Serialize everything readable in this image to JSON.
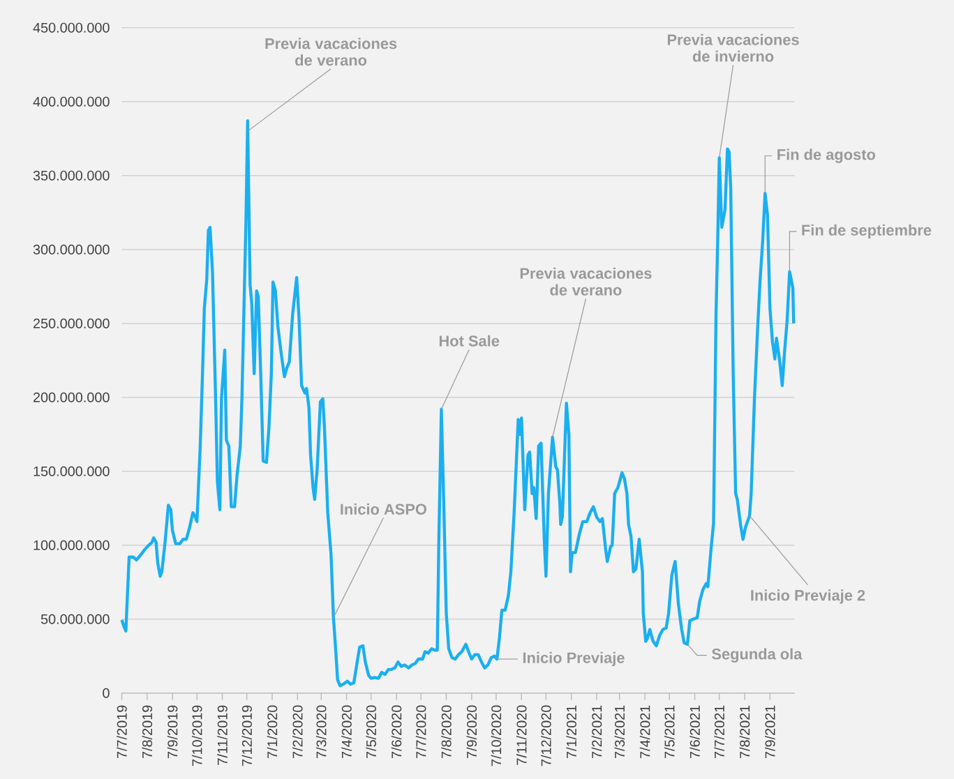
{
  "chart_data": {
    "type": "line",
    "color": "#1aaff0",
    "grid": "y",
    "line_style": "solid",
    "x": [
      "2019-07-07",
      "2019-07-10",
      "2019-07-12",
      "2019-07-16",
      "2019-07-21",
      "2019-07-25",
      "2019-07-31",
      "2019-08-04",
      "2019-08-09",
      "2019-08-13",
      "2019-08-15",
      "2019-08-18",
      "2019-08-20",
      "2019-08-23",
      "2019-08-25",
      "2019-08-29",
      "2019-09-02",
      "2019-09-05",
      "2019-09-07",
      "2019-09-11",
      "2019-09-16",
      "2019-09-20",
      "2019-09-24",
      "2019-09-28",
      "2019-10-02",
      "2019-10-05",
      "2019-10-07",
      "2019-10-11",
      "2019-10-14",
      "2019-10-16",
      "2019-10-19",
      "2019-10-21",
      "2019-10-23",
      "2019-10-26",
      "2019-10-30",
      "2019-11-01",
      "2019-11-04",
      "2019-11-06",
      "2019-11-10",
      "2019-11-12",
      "2019-11-15",
      "2019-11-18",
      "2019-11-22",
      "2019-11-25",
      "2019-11-29",
      "2019-12-01",
      "2019-12-06",
      "2019-12-08",
      "2019-12-11",
      "2019-12-13",
      "2019-12-16",
      "2019-12-19",
      "2019-12-21",
      "2019-12-24",
      "2019-12-27",
      "2019-12-31",
      "2020-01-03",
      "2020-01-06",
      "2020-01-08",
      "2020-01-11",
      "2020-01-14",
      "2020-01-18",
      "2020-01-22",
      "2020-01-25",
      "2020-01-28",
      "2020-02-01",
      "2020-02-06",
      "2020-02-09",
      "2020-02-12",
      "2020-02-16",
      "2020-02-18",
      "2020-02-21",
      "2020-02-23",
      "2020-02-26",
      "2020-02-28",
      "2020-03-02",
      "2020-03-06",
      "2020-03-09",
      "2020-03-11",
      "2020-03-15",
      "2020-03-19",
      "2020-03-22",
      "2020-03-25",
      "2020-03-27",
      "2020-03-30",
      "2020-04-03",
      "2020-04-08",
      "2020-04-12",
      "2020-04-16",
      "2020-04-20",
      "2020-04-23",
      "2020-04-27",
      "2020-04-30",
      "2020-05-04",
      "2020-05-07",
      "2020-05-11",
      "2020-05-16",
      "2020-05-20",
      "2020-05-24",
      "2020-05-28",
      "2020-06-01",
      "2020-06-05",
      "2020-06-09",
      "2020-06-13",
      "2020-06-17",
      "2020-06-22",
      "2020-06-26",
      "2020-06-30",
      "2020-07-04",
      "2020-07-09",
      "2020-07-12",
      "2020-07-16",
      "2020-07-20",
      "2020-07-24",
      "2020-07-27",
      "2020-07-29",
      "2020-08-01",
      "2020-08-04",
      "2020-08-07",
      "2020-08-10",
      "2020-08-14",
      "2020-08-18",
      "2020-08-22",
      "2020-08-26",
      "2020-08-31",
      "2020-09-04",
      "2020-09-07",
      "2020-09-11",
      "2020-09-15",
      "2020-09-20",
      "2020-09-23",
      "2020-09-27",
      "2020-10-01",
      "2020-10-05",
      "2020-10-08",
      "2020-10-11",
      "2020-10-14",
      "2020-10-18",
      "2020-10-22",
      "2020-10-25",
      "2020-10-29",
      "2020-10-31",
      "2020-11-03",
      "2020-11-05",
      "2020-11-07",
      "2020-11-11",
      "2020-11-15",
      "2020-11-17",
      "2020-11-20",
      "2020-11-22",
      "2020-11-25",
      "2020-11-28",
      "2020-12-01",
      "2020-12-05",
      "2020-12-07",
      "2020-12-10",
      "2020-12-15",
      "2020-12-19",
      "2020-12-21",
      "2020-12-24",
      "2020-12-25",
      "2020-12-27",
      "2021-01-01",
      "2021-01-04",
      "2021-01-06",
      "2021-01-08",
      "2021-01-12",
      "2021-01-17",
      "2021-01-21",
      "2021-01-26",
      "2021-01-30",
      "2021-02-03",
      "2021-02-07",
      "2021-02-11",
      "2021-02-14",
      "2021-02-18",
      "2021-02-20",
      "2021-02-24",
      "2021-02-26",
      "2021-03-01",
      "2021-03-05",
      "2021-03-10",
      "2021-03-13",
      "2021-03-16",
      "2021-03-18",
      "2021-03-21",
      "2021-03-24",
      "2021-03-27",
      "2021-03-29",
      "2021-03-31",
      "2021-04-04",
      "2021-04-05",
      "2021-04-08",
      "2021-04-10",
      "2021-04-13",
      "2021-04-17",
      "2021-04-21",
      "2021-04-25",
      "2021-04-29",
      "2021-05-03",
      "2021-05-06",
      "2021-05-10",
      "2021-05-14",
      "2021-05-18",
      "2021-05-22",
      "2021-05-25",
      "2021-05-29",
      "2021-06-01",
      "2021-06-05",
      "2021-06-10",
      "2021-06-13",
      "2021-06-17",
      "2021-06-21",
      "2021-06-23",
      "2021-06-27",
      "2021-06-30",
      "2021-07-03",
      "2021-07-05",
      "2021-07-07",
      "2021-07-10",
      "2021-07-14",
      "2021-07-17",
      "2021-07-19",
      "2021-07-21",
      "2021-07-24",
      "2021-07-27",
      "2021-07-29",
      "2021-08-02",
      "2021-08-05",
      "2021-08-08",
      "2021-08-13",
      "2021-08-15",
      "2021-08-19",
      "2021-08-23",
      "2021-08-26",
      "2021-08-29",
      "2021-09-01",
      "2021-09-04",
      "2021-09-07",
      "2021-09-10",
      "2021-09-13",
      "2021-09-15",
      "2021-09-19",
      "2021-09-22",
      "2021-09-25",
      "2021-09-28",
      "2021-10-01",
      "2021-10-05",
      "2021-10-06"
    ],
    "values": [
      49500000,
      44600000,
      42000000,
      92000000,
      92000000,
      90000000,
      94000000,
      97000000,
      100000000,
      102000000,
      105000000,
      102000000,
      88000000,
      79000000,
      82000000,
      102000000,
      127000000,
      124000000,
      110000000,
      101000000,
      101000000,
      104000000,
      104000000,
      112000000,
      122000000,
      119000000,
      116000000,
      167000000,
      220000000,
      260000000,
      280000000,
      313000000,
      315000000,
      285000000,
      195000000,
      143000000,
      124000000,
      199000000,
      232000000,
      171000000,
      167000000,
      126000000,
      126000000,
      147000000,
      167000000,
      199000000,
      321000000,
      387000000,
      276000000,
      264000000,
      216000000,
      272000000,
      268000000,
      216000000,
      157000000,
      156000000,
      179000000,
      216000000,
      278000000,
      272000000,
      248000000,
      230000000,
      214000000,
      220000000,
      224000000,
      256000000,
      281000000,
      252000000,
      208000000,
      203000000,
      206000000,
      193000000,
      161000000,
      139000000,
      131000000,
      151000000,
      197000000,
      199000000,
      179000000,
      122000000,
      94000000,
      51000000,
      27000000,
      9000000,
      5000000,
      6000000,
      8000000,
      6000000,
      7000000,
      21000000,
      31000000,
      32000000,
      21000000,
      12000000,
      10000000,
      10500000,
      10000000,
      14000000,
      12600000,
      15800000,
      16000000,
      17000000,
      21000000,
      18000000,
      19000000,
      17000000,
      19000000,
      20000000,
      23000000,
      23000000,
      28000000,
      27000000,
      30000000,
      29000000,
      29000000,
      106000000,
      192000000,
      126000000,
      54000000,
      30000000,
      24000000,
      23000000,
      26000000,
      28000000,
      33000000,
      27000000,
      23000000,
      26000000,
      26000000,
      20000000,
      17000000,
      19000000,
      24000000,
      25000000,
      23000000,
      37000000,
      56000000,
      56000000,
      66000000,
      82000000,
      122000000,
      147000000,
      185000000,
      175000000,
      186000000,
      124000000,
      161000000,
      163000000,
      135000000,
      139000000,
      118000000,
      167000000,
      169000000,
      102000000,
      79000000,
      135000000,
      173000000,
      153000000,
      151000000,
      128000000,
      114000000,
      119000000,
      196000000,
      175000000,
      82000000,
      95000000,
      95000000,
      108000000,
      116000000,
      116000000,
      122000000,
      126000000,
      119000000,
      116000000,
      118000000,
      97000000,
      89000000,
      99000000,
      100000000,
      135000000,
      139000000,
      149000000,
      145000000,
      135000000,
      114000000,
      106000000,
      82000000,
      84000000,
      94000000,
      104000000,
      82000000,
      54000000,
      35000000,
      37000000,
      43000000,
      35000000,
      32000000,
      39000000,
      43000000,
      44000000,
      54000000,
      80000000,
      89000000,
      60000000,
      43000000,
      34000000,
      33000000,
      49000000,
      50000000,
      51000000,
      62000000,
      70000000,
      74000000,
      72000000,
      98000000,
      115000000,
      256000000,
      305000000,
      362000000,
      315000000,
      327000000,
      368000000,
      366000000,
      341000000,
      216000000,
      135000000,
      131000000,
      114000000,
      104000000,
      112000000,
      120000000,
      135000000,
      199000000,
      248000000,
      280000000,
      305000000,
      338000000,
      323000000,
      260000000,
      238000000,
      226000000,
      240000000,
      224000000,
      208000000,
      232000000,
      252000000,
      285000000,
      274000000,
      250000000
    ],
    "xlim": [
      "2019-07-07",
      "2021-10-07"
    ],
    "xticks": [
      {
        "value": "2019-07-07",
        "label": "7/7/2019"
      },
      {
        "value": "2019-08-07",
        "label": "7/8/2019"
      },
      {
        "value": "2019-09-07",
        "label": "7/9/2019"
      },
      {
        "value": "2019-10-07",
        "label": "7/10/2019"
      },
      {
        "value": "2019-11-07",
        "label": "7/11/2019"
      },
      {
        "value": "2019-12-07",
        "label": "7/12/2019"
      },
      {
        "value": "2020-01-07",
        "label": "7/1/2020"
      },
      {
        "value": "2020-02-07",
        "label": "7/2/2020"
      },
      {
        "value": "2020-03-07",
        "label": "7/3/2020"
      },
      {
        "value": "2020-04-07",
        "label": "7/4/2020"
      },
      {
        "value": "2020-05-07",
        "label": "7/5/2020"
      },
      {
        "value": "2020-06-07",
        "label": "7/6/2020"
      },
      {
        "value": "2020-07-07",
        "label": "7/7/2020"
      },
      {
        "value": "2020-08-07",
        "label": "7/8/2020"
      },
      {
        "value": "2020-09-07",
        "label": "7/9/2020"
      },
      {
        "value": "2020-10-07",
        "label": "7/10/2020"
      },
      {
        "value": "2020-11-07",
        "label": "7/11/2020"
      },
      {
        "value": "2020-12-07",
        "label": "7/12/2020"
      },
      {
        "value": "2021-01-07",
        "label": "7/1/2021"
      },
      {
        "value": "2021-02-07",
        "label": "7/2/2021"
      },
      {
        "value": "2021-03-07",
        "label": "7/3/2021"
      },
      {
        "value": "2021-04-07",
        "label": "7/4/2021"
      },
      {
        "value": "2021-05-07",
        "label": "7/5/2021"
      },
      {
        "value": "2021-06-07",
        "label": "7/6/2021"
      },
      {
        "value": "2021-07-07",
        "label": "7/7/2021"
      },
      {
        "value": "2021-08-07",
        "label": "7/8/2021"
      },
      {
        "value": "2021-09-07",
        "label": "7/9/2021"
      }
    ],
    "ylim": [
      0,
      450000000
    ],
    "yticks": [
      {
        "value": 0,
        "label": "0"
      },
      {
        "value": 50000000,
        "label": "50.000.000"
      },
      {
        "value": 100000000,
        "label": "100.000.000"
      },
      {
        "value": 150000000,
        "label": "150.000.000"
      },
      {
        "value": 200000000,
        "label": "200.000.000"
      },
      {
        "value": 250000000,
        "label": "250.000.000"
      },
      {
        "value": 300000000,
        "label": "300.000.000"
      },
      {
        "value": 350000000,
        "label": "350.000.000"
      },
      {
        "value": 400000000,
        "label": "400.000.000"
      },
      {
        "value": 450000000,
        "label": "450.000.000"
      }
    ],
    "annotations": [
      {
        "text": "Previa vacaciones de verano",
        "x": "2019-12-08",
        "y": 380000000
      },
      {
        "text": "Inicio ASPO",
        "x": "2020-03-22",
        "y": 51000000
      },
      {
        "text": "Hot Sale",
        "x": "2020-08-01",
        "y": 192000000
      },
      {
        "text": "Inicio Previaje",
        "x": "2020-10-08",
        "y": 23000000
      },
      {
        "text": "Previa vacaciones de verano",
        "x": "2020-12-15",
        "y": 173000000
      },
      {
        "text": "Previa vacaciones de invierno",
        "x": "2021-07-07",
        "y": 362000000
      },
      {
        "text": "Fin de agosto",
        "x": "2021-09-01",
        "y": 338000000
      },
      {
        "text": "Fin de septiembre",
        "x": "2021-10-01",
        "y": 285000000
      },
      {
        "text": "Inicio Previaje 2",
        "x": "2021-08-13",
        "y": 120000000
      },
      {
        "text": "Segunda ola",
        "x": "2021-05-29",
        "y": 33000000
      }
    ]
  }
}
